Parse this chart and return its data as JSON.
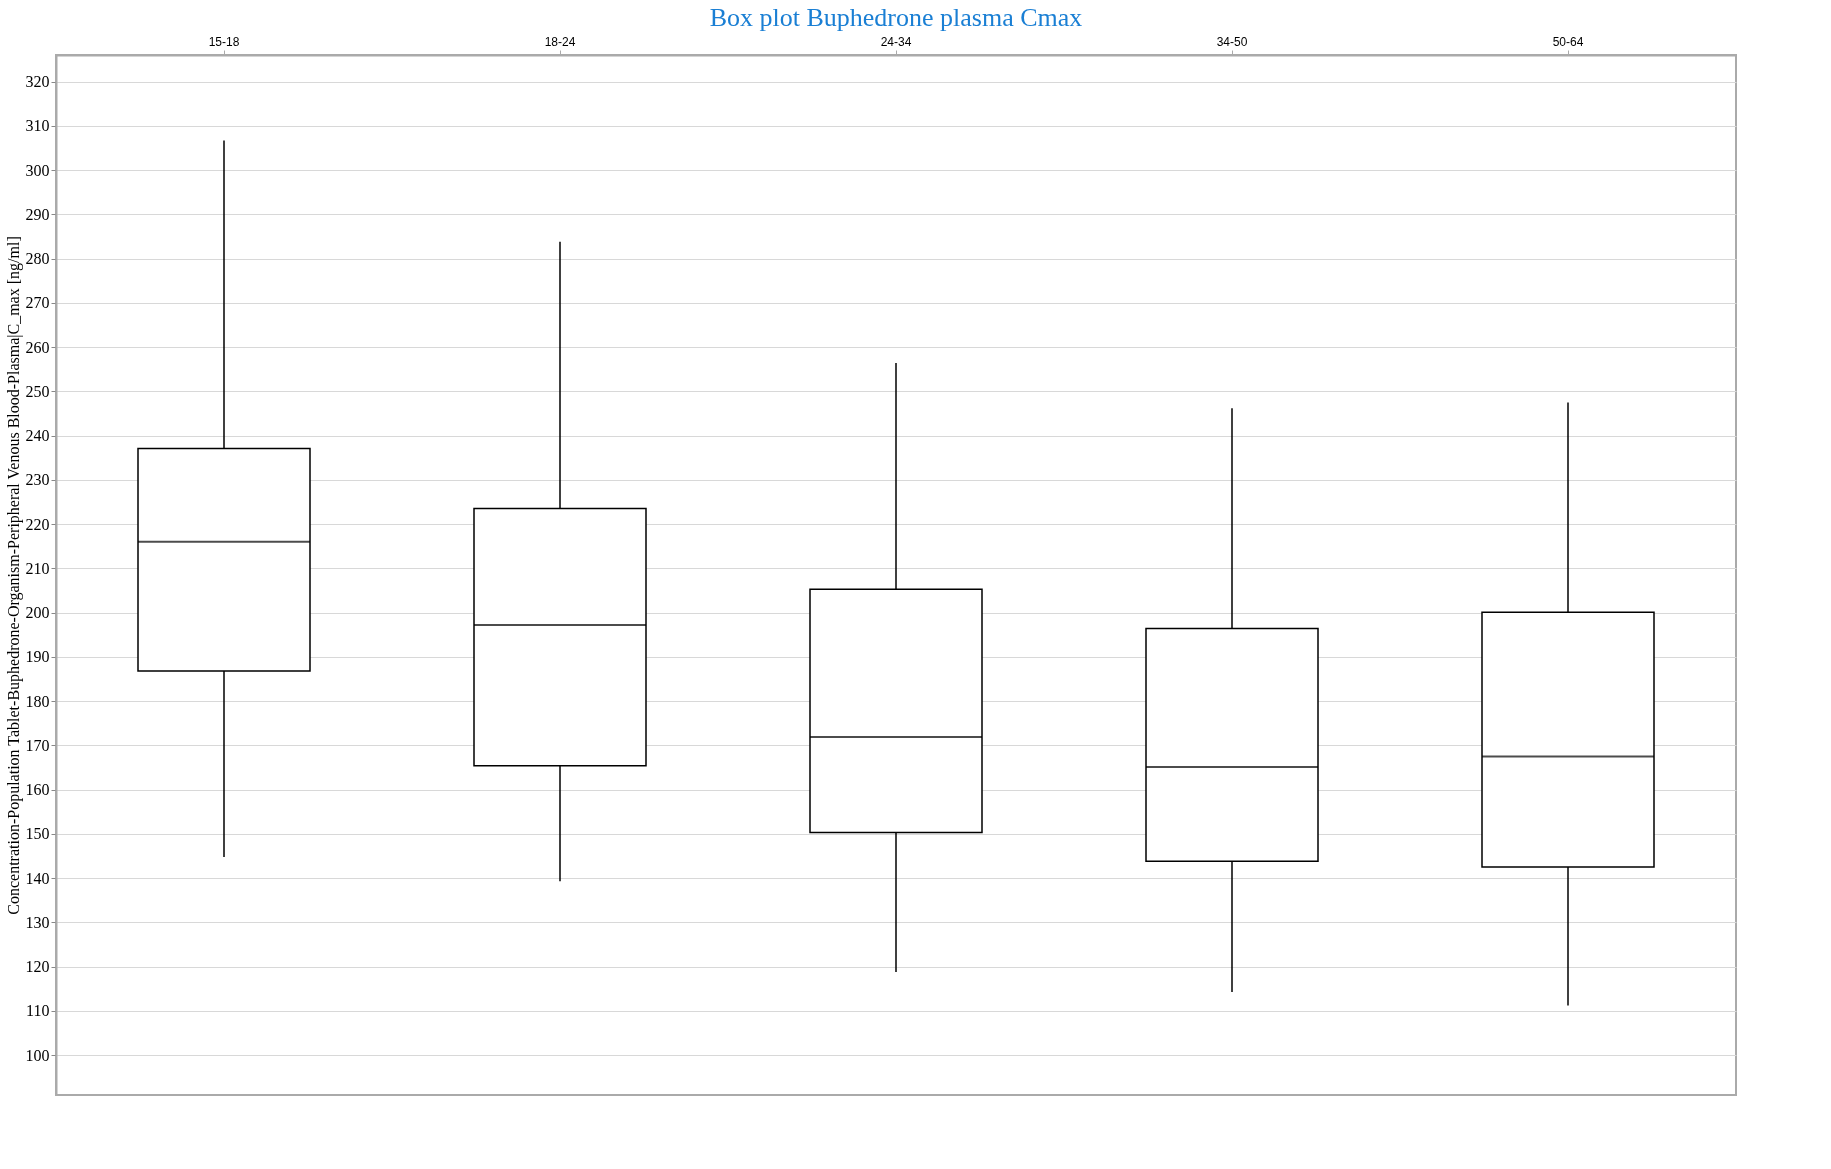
{
  "chart_data": {
    "type": "box",
    "title": "Box plot Buphedrone plasma Cmax",
    "ylabel": "Concentration-Population Tablet-Buphedrone-Organism-Peripheral Venous Blood-Plasma|C_max [ng/ml]",
    "categories": [
      "15-18",
      "18-24",
      "24-34",
      "34-50",
      "50-64"
    ],
    "boxes": [
      {
        "low": 144.8,
        "q1": 186.8,
        "median": 216,
        "q3": 237.1,
        "high": 306.7
      },
      {
        "low": 139.3,
        "q1": 165.4,
        "median": 197.2,
        "q3": 223.5,
        "high": 283.8
      },
      {
        "low": 118.8,
        "q1": 150.3,
        "median": 171.9,
        "q3": 205.3,
        "high": 256.4
      },
      {
        "low": 114.3,
        "q1": 143.8,
        "median": 165.1,
        "q3": 196.4,
        "high": 246.2
      },
      {
        "low": 111.2,
        "q1": 142.5,
        "median": 167.5,
        "q3": 200.1,
        "high": 247.5
      }
    ],
    "ylim": [
      91,
      326
    ],
    "yticks": [
      100,
      110,
      120,
      130,
      140,
      150,
      160,
      170,
      180,
      190,
      200,
      210,
      220,
      230,
      240,
      250,
      260,
      270,
      280,
      290,
      300,
      310,
      320
    ],
    "grid": "y"
  }
}
